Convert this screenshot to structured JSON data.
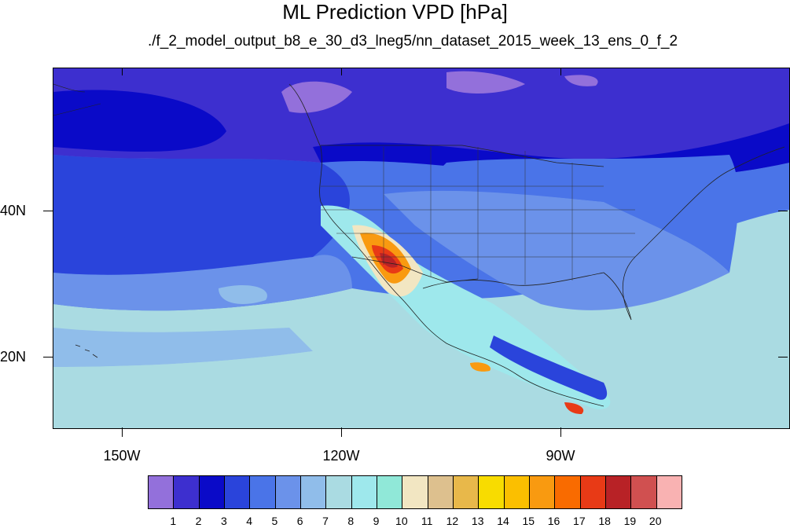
{
  "figure": {
    "title": "ML Prediction VPD [hPa]",
    "subtitle": "./f_2_model_output_b8_e_30_d3_lneg5/nn_dataset_2015_week_13_ens_0_f_2"
  },
  "axes": {
    "lat_labels": [
      "40N",
      "20N"
    ],
    "lon_labels": [
      "150W",
      "120W",
      "90W"
    ]
  },
  "colorbar": {
    "labels": [
      "1",
      "2",
      "3",
      "4",
      "5",
      "6",
      "7",
      "8",
      "9",
      "10",
      "11",
      "12",
      "13",
      "14",
      "15",
      "16",
      "17",
      "18",
      "19",
      "20"
    ],
    "colors": [
      "#9370db",
      "#3d2fcf",
      "#0a0ac8",
      "#2a44db",
      "#4a74e8",
      "#6b92ea",
      "#90bdea",
      "#aadbe2",
      "#9ee8ec",
      "#90e8d8",
      "#f2e6c2",
      "#ddc08e",
      "#e8b84a",
      "#f8dc00",
      "#fbbf00",
      "#f99a10",
      "#f96b00",
      "#e83a16",
      "#b82226",
      "#d05050",
      "#f9b2b2"
    ]
  },
  "map": {
    "region": "North Pacific, North America",
    "lat_range": [
      10,
      59
    ],
    "lon_range": [
      -160,
      -60
    ],
    "legend_palette_key": {
      "lavender": "#9370db",
      "dark_blue": "#3d2fcf",
      "navy": "#0a0ac8",
      "blue": "#2a44db",
      "medium_blue": "#4a74e8",
      "light_blue": "#6b92ea",
      "sky": "#90bdea",
      "pale_cyan": "#aadbe2",
      "cyan": "#9ee8ec",
      "tan": "#f2e6c2",
      "orange": "#f99a10",
      "red": "#e83a16",
      "dark_red": "#b82226"
    }
  }
}
